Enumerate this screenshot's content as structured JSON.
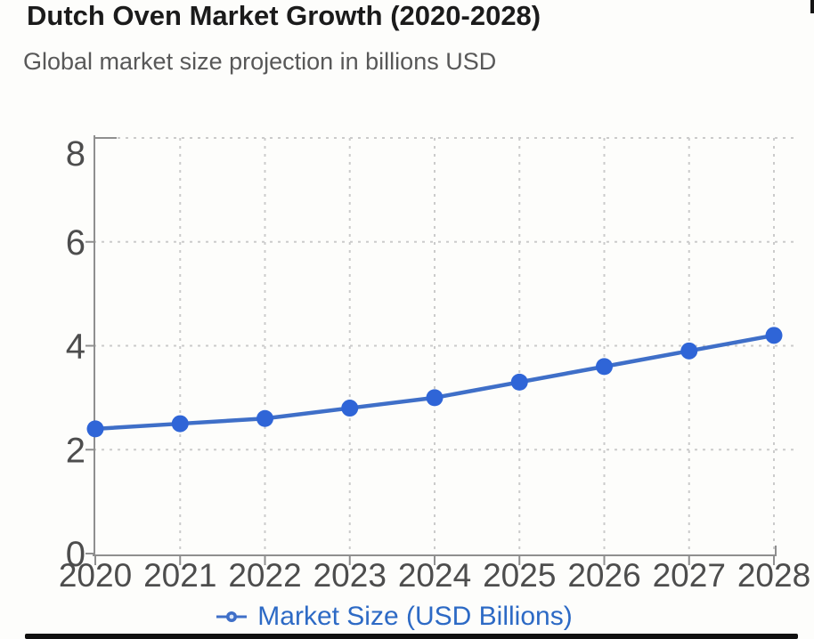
{
  "page": {
    "title": "Dutch Oven Market Growth (2020-2028)",
    "subtitle": "Global market size projection in billions USD"
  },
  "chart_data": {
    "type": "line",
    "title": "Dutch Oven Market Growth (2020-2028)",
    "subtitle": "Global market size projection in billions USD",
    "x": [
      "2020",
      "2021",
      "2022",
      "2023",
      "2024",
      "2025",
      "2026",
      "2027",
      "2028"
    ],
    "series": [
      {
        "name": "Market Size (USD Billions)",
        "values": [
          2.4,
          2.5,
          2.6,
          2.8,
          3.0,
          3.3,
          3.6,
          3.9,
          4.2
        ]
      }
    ],
    "xlabel": "",
    "ylabel": "",
    "ylim": [
      0,
      8
    ],
    "yticks": [
      0,
      2,
      4,
      6,
      8
    ],
    "grid": true,
    "grid_style": "dotted",
    "legend_position": "bottom",
    "colors": {
      "line": "#3f6fc8",
      "point": "#2f65d7",
      "legend_text": "#2d6ac5",
      "grid": "#cbcbcb",
      "axis": "#8f8f8f",
      "tick_label": "#4d4d4d",
      "title": "#1b1b1b",
      "subtitle": "#585858",
      "marker_center": "#dde7f8"
    }
  },
  "legend": {
    "marker_icon": "line-dot-marker",
    "label": "Market Size (USD Billions)"
  }
}
